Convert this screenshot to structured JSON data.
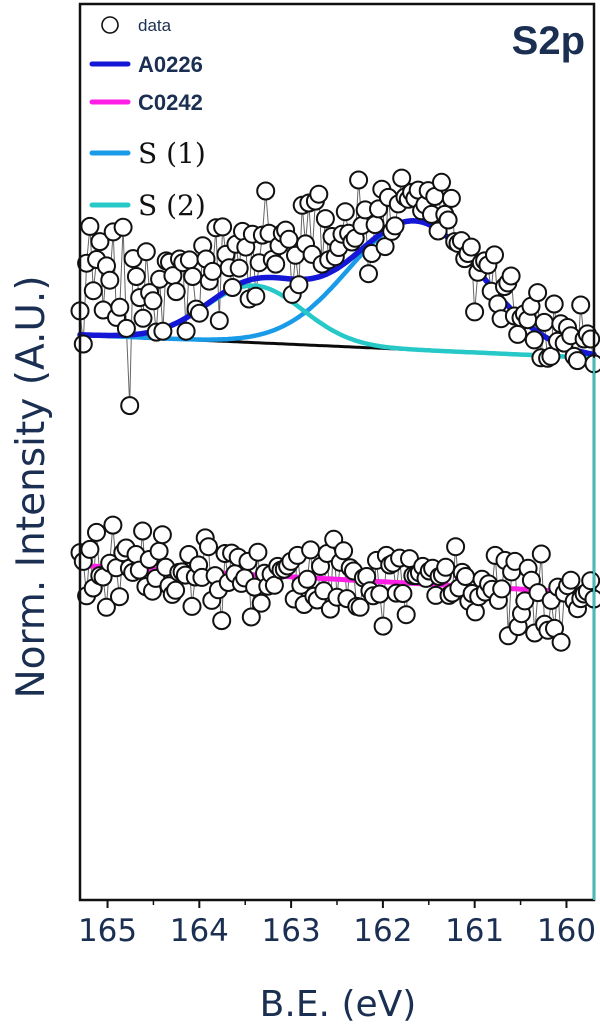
{
  "chart_data": {
    "type": "scatter",
    "panel_label": "S2p",
    "xlabel": "B.E. (eV)",
    "ylabel": "Norm. Intensity (A.U.)",
    "xlim": [
      165.3,
      159.7
    ],
    "x_reversed": true,
    "ylim": [
      -0.35,
      1.6
    ],
    "x_ticks": [
      165,
      164,
      163,
      162,
      161,
      160
    ],
    "y_ticks_shown": false,
    "legend": {
      "position": "top-left",
      "entries": [
        {
          "label": "data",
          "marker": "open-circle",
          "style": "small"
        },
        {
          "label": "A0226",
          "color": "#1417d6",
          "style": "bold"
        },
        {
          "label": "C0242",
          "color": "#ff1ee6",
          "style": "bold"
        },
        {
          "label": "S (1)",
          "color": "#1a9be8",
          "style": "serif"
        },
        {
          "label": "S (2)",
          "color": "#27c8c8",
          "style": "serif"
        }
      ]
    },
    "series": [
      {
        "name": "A0226",
        "kind": "data",
        "x_start": 165.3,
        "x_end": 159.7,
        "values": [
          0.932,
          0.86,
          1.036,
          1.116,
          0.976,
          1.044,
          1.083,
          0.934,
          1.03,
          0.999,
          1.104,
          0.918,
          0.94,
          1.114,
          0.894,
          0.726,
          1.046,
          1.007,
          0.961,
          0.916,
          1.061,
          0.972,
          0.954,
          0.886,
          1.001,
          0.888,
          1.041,
          1.038,
          1.009,
          0.974,
          1.045,
          1.037,
          0.888,
          1.043,
          1.007,
          0.936,
          0.927,
          1.074,
          1.045,
          0.997,
          1.018,
          1.113,
          0.911,
          1.115,
          1.055,
          1.026,
          0.983,
          1.077,
          1.025,
          1.105,
          1.071,
          0.958,
          1.099,
          0.964,
          1.037,
          1.097,
          1.193,
          1.101,
          1.044,
          1.034,
          1.074,
          1.101,
          1.108,
          1.088,
          0.968,
          1.053,
          0.989,
          1.162,
          1.078,
          1.167,
          1.055,
          1.171,
          1.186,
          1.034,
          1.133,
          1.043,
          1.094,
          1.05,
          1.07,
          1.099,
          1.148,
          1.101,
          1.082,
          1.09,
          1.217,
          1.118,
          1.152,
          1.013,
          1.057,
          1.12,
          1.154,
          1.197,
          1.072,
          1.179,
          1.105,
          1.117,
          1.165,
          1.221,
          1.18,
          1.175,
          1.19,
          1.177,
          1.195,
          1.15,
          1.163,
          1.194,
          1.142,
          1.181,
          1.106,
          1.212,
          1.142,
          1.13,
          1.177,
          1.083,
          1.079,
          1.085,
          1.046,
          1.057,
          1.071,
          0.93,
          1.016,
          1.037,
          1.041,
          1.032,
          0.975,
          1.054,
          0.947,
          0.915,
          0.985,
          0.993,
          1.008,
          0.921,
          0.881,
          0.917,
          0.926,
          0.913,
          0.942,
          0.869,
          0.972,
          0.83,
          0.907,
          0.829,
          0.833,
          0.947,
          0.866,
          0.904,
          0.862,
          0.896,
          0.878,
          0.833,
          0.824,
          0.945,
          0.871,
          0.882,
          0.871,
          0.817
        ]
      },
      {
        "name": "C0242",
        "kind": "data",
        "x_start": 165.3,
        "x_end": 159.7,
        "values": [
          0.406,
          0.387,
          0.312,
          0.413,
          0.329,
          0.45,
          0.356,
          0.353,
          0.287,
          0.383,
          0.466,
          0.373,
          0.31,
          0.406,
          0.416,
          0.372,
          0.363,
          0.402,
          0.368,
          0.453,
          0.332,
          0.391,
          0.322,
          0.35,
          0.409,
          0.445,
          0.374,
          0.334,
          0.315,
          0.324,
          0.363,
          0.364,
          0.357,
          0.402,
          0.289,
          0.353,
          0.379,
          0.352,
          0.438,
          0.419,
          0.302,
          0.356,
          0.325,
          0.258,
          0.404,
          0.341,
          0.405,
          0.36,
          0.396,
          0.339,
          0.351,
          0.387,
          0.266,
          0.331,
          0.407,
          0.296,
          0.361,
          0.333,
          0.359,
          0.335,
          0.376,
          0.368,
          0.37,
          0.377,
          0.387,
          0.305,
          0.4,
          0.335,
          0.293,
          0.348,
          0.412,
          0.311,
          0.303,
          0.376,
          0.323,
          0.404,
          0.283,
          0.435,
          0.309,
          0.385,
          0.41,
          0.306,
          0.373,
          0.366,
          0.289,
          0.287,
          0.351,
          0.354,
          0.323,
          0.312,
          0.389,
          0.316,
          0.246,
          0.4,
          0.379,
          0.383,
          0.318,
          0.394,
          0.317,
          0.271,
          0.393,
          0.356,
          0.356,
          0.362,
          0.376,
          0.35,
          0.366,
          0.372,
          0.313,
          0.354,
          0.358,
          0.374,
          0.313,
          0.318,
          0.419,
          0.329,
          0.363,
          0.354,
          0.3,
          0.317,
          0.277,
          0.31,
          0.348,
          0.32,
          0.338,
          0.326,
          0.4,
          0.302,
          0.327,
          0.389,
          0.225,
          0.364,
          0.387,
          0.245,
          0.273,
          0.301,
          0.372,
          0.346,
          0.231,
          0.319,
          0.403,
          0.25,
          0.237,
          0.302,
          0.241,
          0.331,
          0.211,
          0.318,
          0.334,
          0.346,
          0.3,
          0.284,
          0.306,
          0.316,
          0.321,
          0.345,
          0.305
        ]
      },
      {
        "name": "S (1)",
        "kind": "fit",
        "center": 161.65,
        "height": 0.28,
        "fwhm": 1.7,
        "color": "#1a9be8"
      },
      {
        "name": "S (2)",
        "kind": "fit",
        "center": 163.4,
        "height": 0.124,
        "fwhm": 1.25,
        "color": "#27c8c8"
      }
    ],
    "fit_envelope": {
      "name": "A0226",
      "color": "#1417d6"
    },
    "baselines": [
      {
        "of": "A0226",
        "color": "#0a0a0a",
        "y_at_xstart": 0.88,
        "y_at_xend": 0.83
      },
      {
        "of": "C0242",
        "color": "#ff1ee6",
        "y_at_xstart": 0.378,
        "y_at_xend": 0.318
      }
    ]
  }
}
